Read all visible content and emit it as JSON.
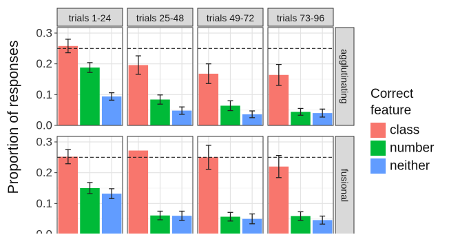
{
  "chart_data": {
    "type": "bar",
    "ylabel": "Proportion of responses",
    "xlabel": "",
    "ylim": [
      0,
      0.3
    ],
    "yticks": [
      "0.0",
      "0.1",
      "0.2",
      "0.3"
    ],
    "reference_line": 0.25,
    "columns": [
      "trials 1-24",
      "trials 25-48",
      "trials 49-72",
      "trials 73-96"
    ],
    "rows": [
      "agglutinating",
      "fusional"
    ],
    "legend": {
      "title_lines": [
        "Correct",
        "feature"
      ],
      "position": "right"
    },
    "series": [
      {
        "name": "class",
        "color": "#f8766d"
      },
      {
        "name": "number",
        "color": "#00ba38"
      },
      {
        "name": "neither",
        "color": "#619cff"
      }
    ],
    "panels": [
      {
        "row": 0,
        "col": 0,
        "values": [
          0.258,
          0.188,
          0.094
        ],
        "errors": [
          0.022,
          0.016,
          0.012
        ]
      },
      {
        "row": 0,
        "col": 1,
        "values": [
          0.196,
          0.084,
          0.048
        ],
        "errors": [
          0.03,
          0.015,
          0.012
        ]
      },
      {
        "row": 0,
        "col": 2,
        "values": [
          0.168,
          0.064,
          0.036
        ],
        "errors": [
          0.032,
          0.016,
          0.011
        ]
      },
      {
        "row": 0,
        "col": 3,
        "values": [
          0.164,
          0.044,
          0.04
        ],
        "errors": [
          0.034,
          0.011,
          0.013
        ]
      },
      {
        "row": 1,
        "col": 0,
        "values": [
          0.252,
          0.15,
          0.132
        ],
        "errors": [
          0.023,
          0.018,
          0.016
        ]
      },
      {
        "row": 1,
        "col": 1,
        "values": [
          0.272,
          0.061,
          0.06
        ],
        "errors": [
          0.0,
          0.014,
          0.015
        ]
      },
      {
        "row": 1,
        "col": 2,
        "values": [
          0.25,
          0.057,
          0.05
        ],
        "errors": [
          0.039,
          0.014,
          0.016
        ]
      },
      {
        "row": 1,
        "col": 3,
        "values": [
          0.22,
          0.059,
          0.046
        ],
        "errors": [
          0.036,
          0.014,
          0.013
        ]
      }
    ],
    "grid": true
  }
}
